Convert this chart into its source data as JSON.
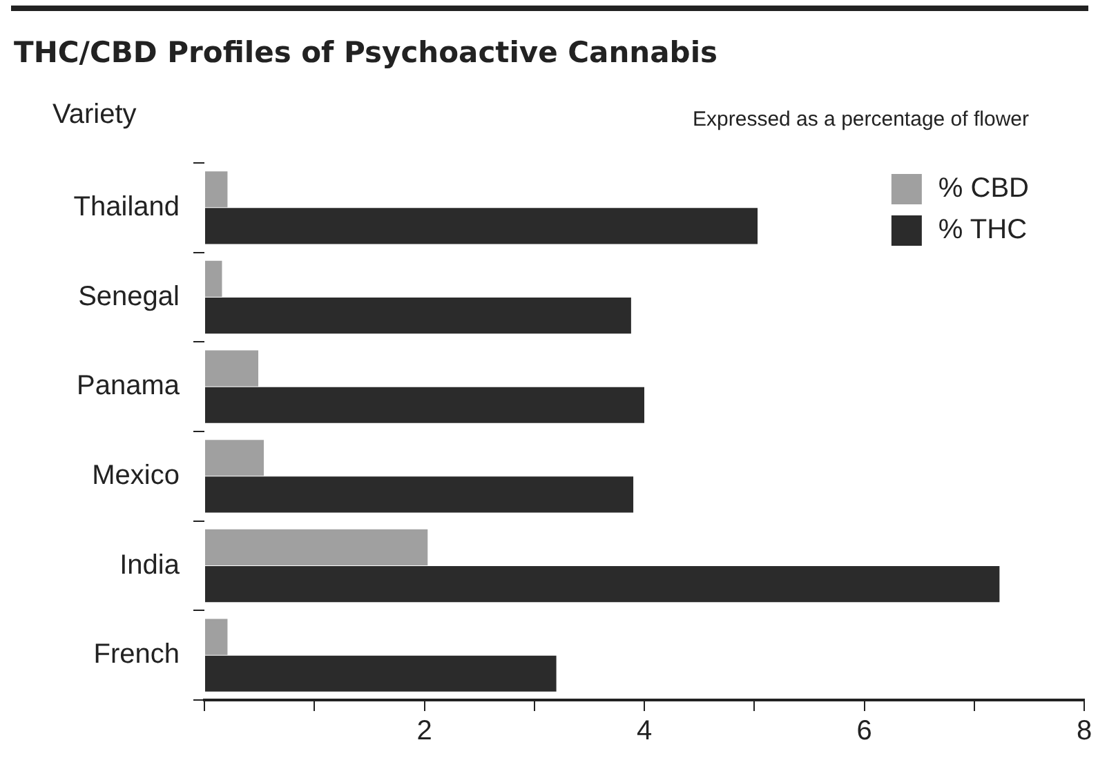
{
  "chart_data": {
    "type": "bar",
    "orientation": "horizontal",
    "title": "THC/CBD Profiles of Psychoactive Cannabis",
    "ylabel": "Variety",
    "annotations": [
      "Expressed as a percentage of flower"
    ],
    "categories": [
      "Thailand",
      "Senegal",
      "Panama",
      "Mexico",
      "India",
      "French"
    ],
    "series": [
      {
        "name": "% CBD",
        "color": "#a0a0a0",
        "values": [
          0.21,
          0.16,
          0.49,
          0.54,
          2.03,
          0.21
        ]
      },
      {
        "name": "% THC",
        "color": "#2b2b2b",
        "values": [
          5.03,
          3.88,
          4.0,
          3.9,
          7.23,
          3.2
        ]
      }
    ],
    "xlim": [
      0,
      8
    ],
    "xticks": [
      {
        "value": 0,
        "label": null
      },
      {
        "value": 1,
        "label": null
      },
      2,
      {
        "value": 3,
        "label": null
      },
      4,
      {
        "value": 5,
        "label": null
      },
      6,
      {
        "value": 7,
        "label": null
      },
      8
    ],
    "grid": false,
    "legend": "top right"
  }
}
